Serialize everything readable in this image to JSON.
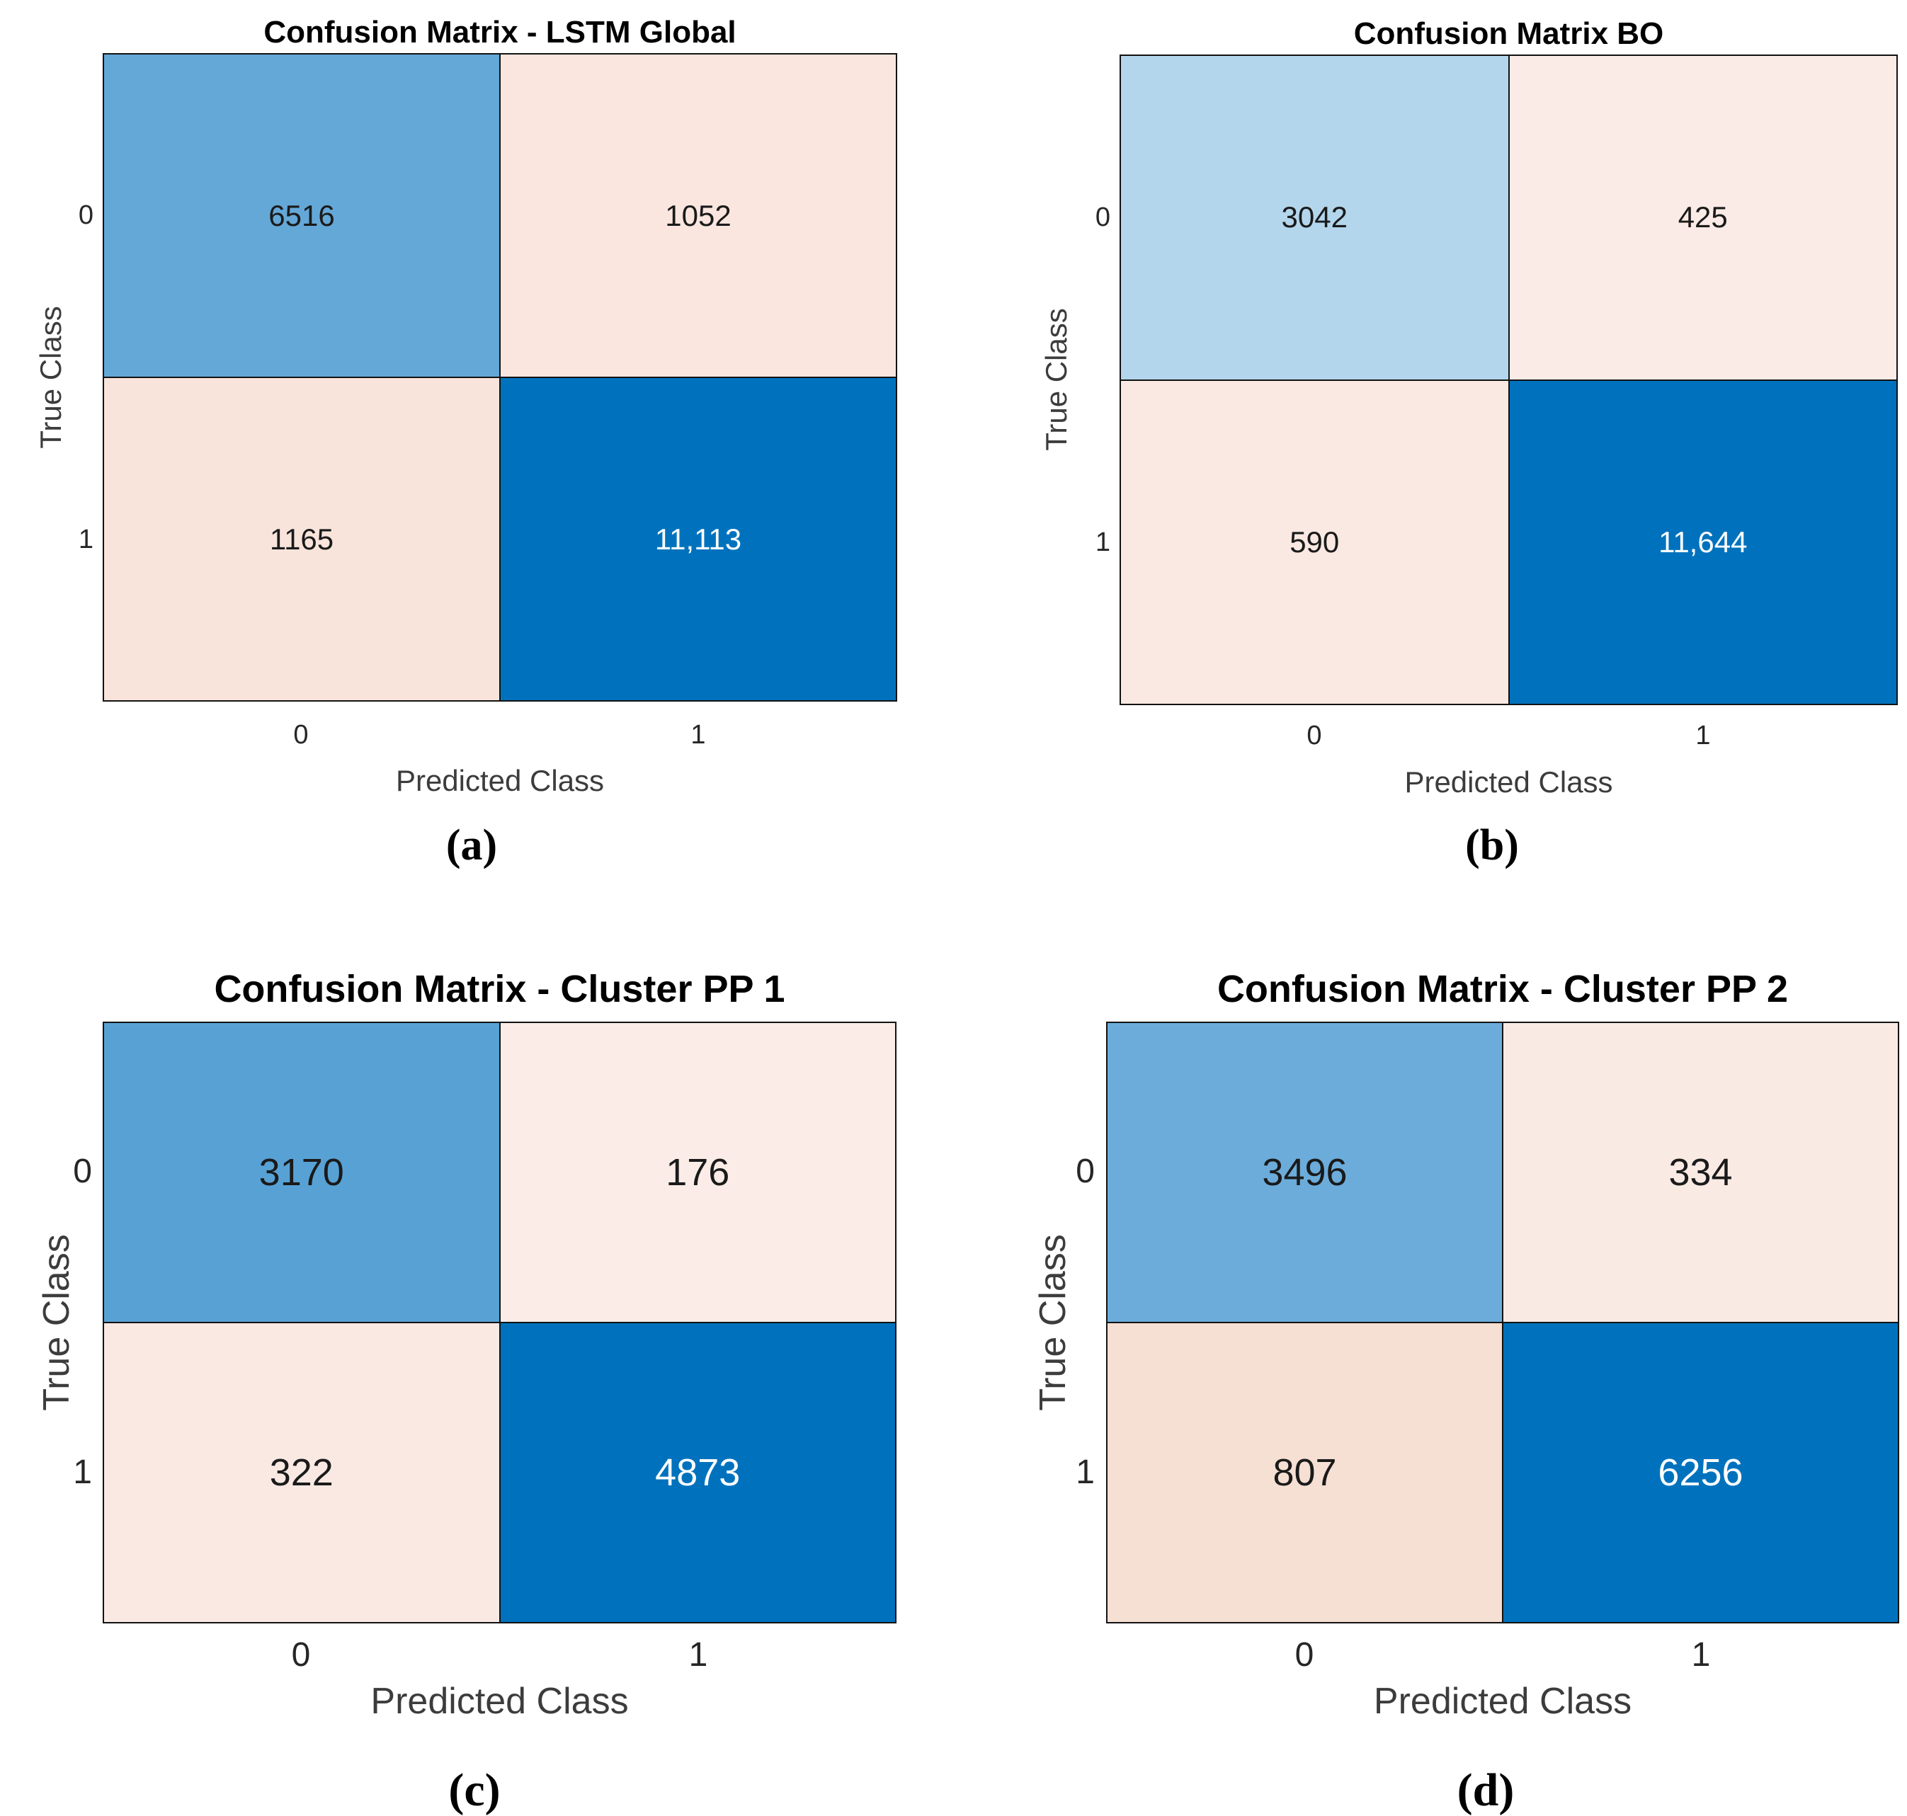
{
  "figure": {
    "panels": [
      {
        "id": "a",
        "title": "Confusion Matrix - LSTM Global",
        "xlabel": "Predicted Class",
        "ylabel": "True Class",
        "x_ticks": [
          "0",
          "1"
        ],
        "y_ticks": [
          "0",
          "1"
        ],
        "caption": "(a)",
        "cells": [
          [
            {
              "value": "6516",
              "bg": "#64A8D8",
              "fg": "#1A1A1A"
            },
            {
              "value": "1052",
              "bg": "#FAE6DF",
              "fg": "#1A1A1A"
            }
          ],
          [
            {
              "value": "1165",
              "bg": "#F9E4DC",
              "fg": "#1A1A1A"
            },
            {
              "value": "11,113",
              "bg": "#0072BD",
              "fg": "#FFFFFF"
            }
          ]
        ]
      },
      {
        "id": "b",
        "title": "Confusion Matrix BO",
        "xlabel": "Predicted Class",
        "ylabel": "True Class",
        "x_ticks": [
          "0",
          "1"
        ],
        "y_ticks": [
          "0",
          "1"
        ],
        "caption": "(b)",
        "cells": [
          [
            {
              "value": "3042",
              "bg": "#B3D6EC",
              "fg": "#1A1A1A"
            },
            {
              "value": "425",
              "bg": "#FBEBE6",
              "fg": "#1A1A1A"
            }
          ],
          [
            {
              "value": "590",
              "bg": "#FAE9E2",
              "fg": "#1A1A1A"
            },
            {
              "value": "11,644",
              "bg": "#0072BD",
              "fg": "#FFFFFF"
            }
          ]
        ]
      },
      {
        "id": "c",
        "title": "Confusion Matrix - Cluster PP 1",
        "xlabel": "Predicted Class",
        "ylabel": "True Class",
        "x_ticks": [
          "0",
          "1"
        ],
        "y_ticks": [
          "0",
          "1"
        ],
        "caption": "(c)",
        "cells": [
          [
            {
              "value": "3170",
              "bg": "#58A1D4",
              "fg": "#1A1A1A"
            },
            {
              "value": "176",
              "bg": "#FBECE7",
              "fg": "#1A1A1A"
            }
          ],
          [
            {
              "value": "322",
              "bg": "#FAE9E3",
              "fg": "#1A1A1A"
            },
            {
              "value": "4873",
              "bg": "#0072BD",
              "fg": "#FFFFFF"
            }
          ]
        ]
      },
      {
        "id": "d",
        "title": "Confusion Matrix - Cluster PP 2",
        "xlabel": "Predicted Class",
        "ylabel": "True Class",
        "x_ticks": [
          "0",
          "1"
        ],
        "y_ticks": [
          "0",
          "1"
        ],
        "caption": "(d)",
        "cells": [
          [
            {
              "value": "3496",
              "bg": "#6BACDA",
              "fg": "#1A1A1A"
            },
            {
              "value": "334",
              "bg": "#FAEAE4",
              "fg": "#1A1A1A"
            }
          ],
          [
            {
              "value": "807",
              "bg": "#F6DFD3",
              "fg": "#1A1A1A"
            },
            {
              "value": "6256",
              "bg": "#0072BD",
              "fg": "#FFFFFF"
            }
          ]
        ]
      }
    ]
  },
  "chart_data": [
    {
      "type": "heatmap",
      "title": "Confusion Matrix - LSTM Global",
      "xlabel": "Predicted Class",
      "ylabel": "True Class",
      "x_categories": [
        "0",
        "1"
      ],
      "y_categories": [
        "0",
        "1"
      ],
      "matrix": [
        [
          6516,
          1052
        ],
        [
          1165,
          11113
        ]
      ],
      "panel_caption": "(a)",
      "legend": "none",
      "grid": false
    },
    {
      "type": "heatmap",
      "title": "Confusion Matrix BO",
      "xlabel": "Predicted Class",
      "ylabel": "True Class",
      "x_categories": [
        "0",
        "1"
      ],
      "y_categories": [
        "0",
        "1"
      ],
      "matrix": [
        [
          3042,
          425
        ],
        [
          590,
          11644
        ]
      ],
      "panel_caption": "(b)",
      "legend": "none",
      "grid": false
    },
    {
      "type": "heatmap",
      "title": "Confusion Matrix - Cluster PP 1",
      "xlabel": "Predicted Class",
      "ylabel": "True Class",
      "x_categories": [
        "0",
        "1"
      ],
      "y_categories": [
        "0",
        "1"
      ],
      "matrix": [
        [
          3170,
          176
        ],
        [
          322,
          4873
        ]
      ],
      "panel_caption": "(c)",
      "legend": "none",
      "grid": false
    },
    {
      "type": "heatmap",
      "title": "Confusion Matrix - Cluster PP 2",
      "xlabel": "Predicted Class",
      "ylabel": "True Class",
      "x_categories": [
        "0",
        "1"
      ],
      "y_categories": [
        "0",
        "1"
      ],
      "matrix": [
        [
          3496,
          334
        ],
        [
          807,
          6256
        ]
      ],
      "panel_caption": "(d)",
      "legend": "none",
      "grid": false
    }
  ]
}
